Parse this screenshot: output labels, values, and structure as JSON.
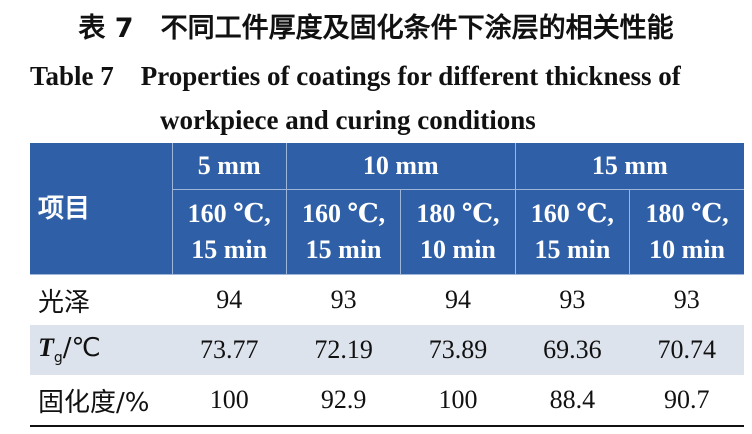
{
  "title_cn": "表 7　不同工件厚度及固化条件下涂层的相关性能",
  "title_en": "Table 7　Properties of coatings for different thickness of workpiece and curing conditions",
  "table": {
    "corner": "项目",
    "groups": [
      {
        "label": "5 mm",
        "conditions": [
          [
            "160 ℃,",
            "15 min"
          ]
        ]
      },
      {
        "label": "10 mm",
        "conditions": [
          [
            "160 ℃,",
            "15 min"
          ],
          [
            "180 ℃,",
            "10 min"
          ]
        ]
      },
      {
        "label": "15 mm",
        "conditions": [
          [
            "160 ℃,",
            "15 min"
          ],
          [
            "180 ℃,",
            "10 min"
          ]
        ]
      }
    ],
    "rows": [
      {
        "label_parts": [
          "光泽"
        ],
        "cells": [
          "94",
          "93",
          "94",
          "93",
          "93"
        ]
      },
      {
        "label_parts": [
          "T",
          "g",
          "/℃"
        ],
        "cells": [
          "73.77",
          "72.19",
          "73.89",
          "69.36",
          "70.74"
        ]
      },
      {
        "label_parts": [
          "固化度/%"
        ],
        "cells": [
          "100",
          "92.9",
          "100",
          "88.4",
          "90.7"
        ]
      }
    ]
  }
}
